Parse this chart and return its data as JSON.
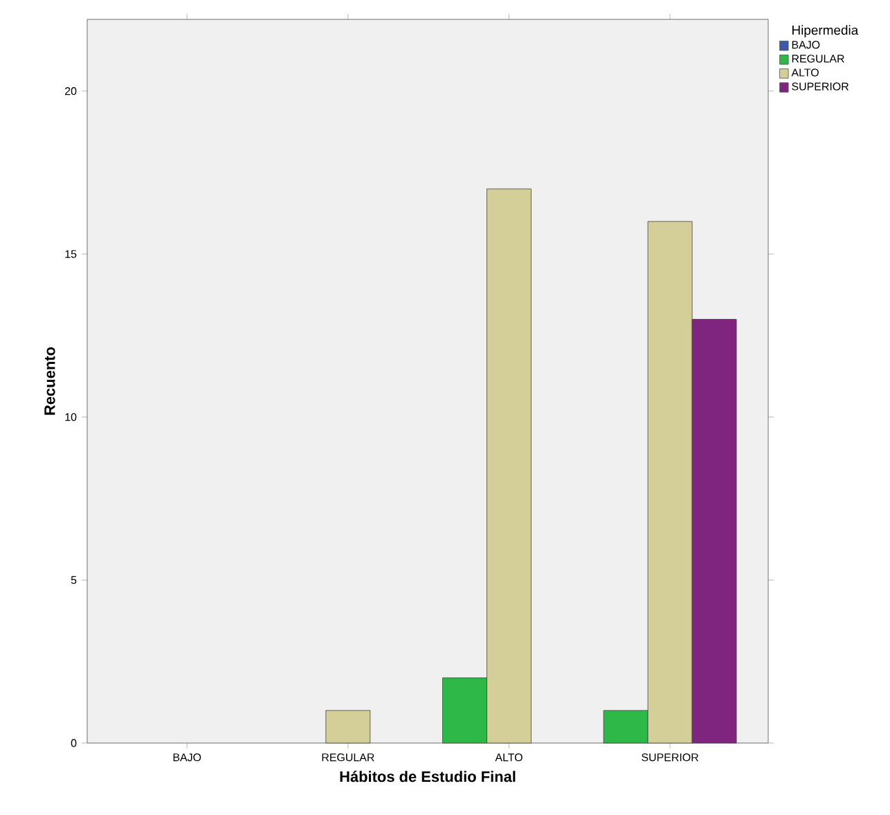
{
  "chart_data": {
    "type": "bar",
    "xlabel": "Hábitos de Estudio  Final",
    "ylabel": "Recuento",
    "legend_title": "Hipermedia",
    "categories": [
      "BAJO",
      "REGULAR",
      "ALTO",
      "SUPERIOR"
    ],
    "series": [
      {
        "name": "BAJO",
        "color": "#3e58ac",
        "values": [
          null,
          null,
          null,
          null
        ]
      },
      {
        "name": "REGULAR",
        "color": "#2eb848",
        "values": [
          null,
          null,
          2,
          1
        ]
      },
      {
        "name": "ALTO",
        "color": "#d4cf98",
        "values": [
          null,
          1,
          17,
          16
        ]
      },
      {
        "name": "SUPERIOR",
        "color": "#7f2580",
        "values": [
          null,
          null,
          null,
          13
        ]
      }
    ],
    "ylim": [
      0,
      22.2
    ],
    "yticks": [
      0,
      5,
      10,
      15,
      20
    ],
    "grid": false,
    "legend": "top right"
  }
}
